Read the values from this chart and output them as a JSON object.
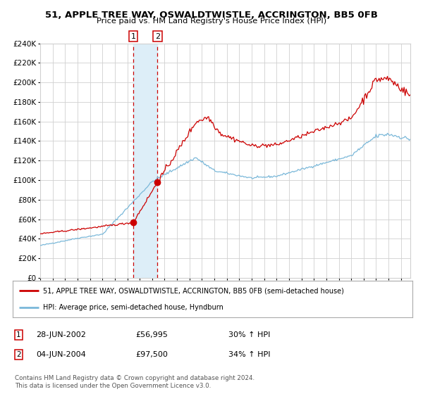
{
  "title": "51, APPLE TREE WAY, OSWALDTWISTLE, ACCRINGTON, BB5 0FB",
  "subtitle": "Price paid vs. HM Land Registry's House Price Index (HPI)",
  "legend_line1": "51, APPLE TREE WAY, OSWALDTWISTLE, ACCRINGTON, BB5 0FB (semi-detached house)",
  "legend_line2": "HPI: Average price, semi-detached house, Hyndburn",
  "transaction1_date": "28-JUN-2002",
  "transaction1_price": "£56,995",
  "transaction1_hpi": "30% ↑ HPI",
  "transaction2_date": "04-JUN-2004",
  "transaction2_price": "£97,500",
  "transaction2_hpi": "34% ↑ HPI",
  "footer": "Contains HM Land Registry data © Crown copyright and database right 2024.\nThis data is licensed under the Open Government Licence v3.0.",
  "ylim": [
    0,
    240000
  ],
  "yticks": [
    0,
    20000,
    40000,
    60000,
    80000,
    100000,
    120000,
    140000,
    160000,
    180000,
    200000,
    220000,
    240000
  ],
  "transaction1_x": 2002.49,
  "transaction1_y": 56995,
  "transaction2_x": 2004.42,
  "transaction2_y": 97500,
  "hpi_color": "#7ab8d9",
  "price_color": "#cc0000",
  "grid_color": "#d0d0d0",
  "shade_color": "#ddeef8",
  "xlim_start": 1995.0,
  "xlim_end": 2024.75
}
